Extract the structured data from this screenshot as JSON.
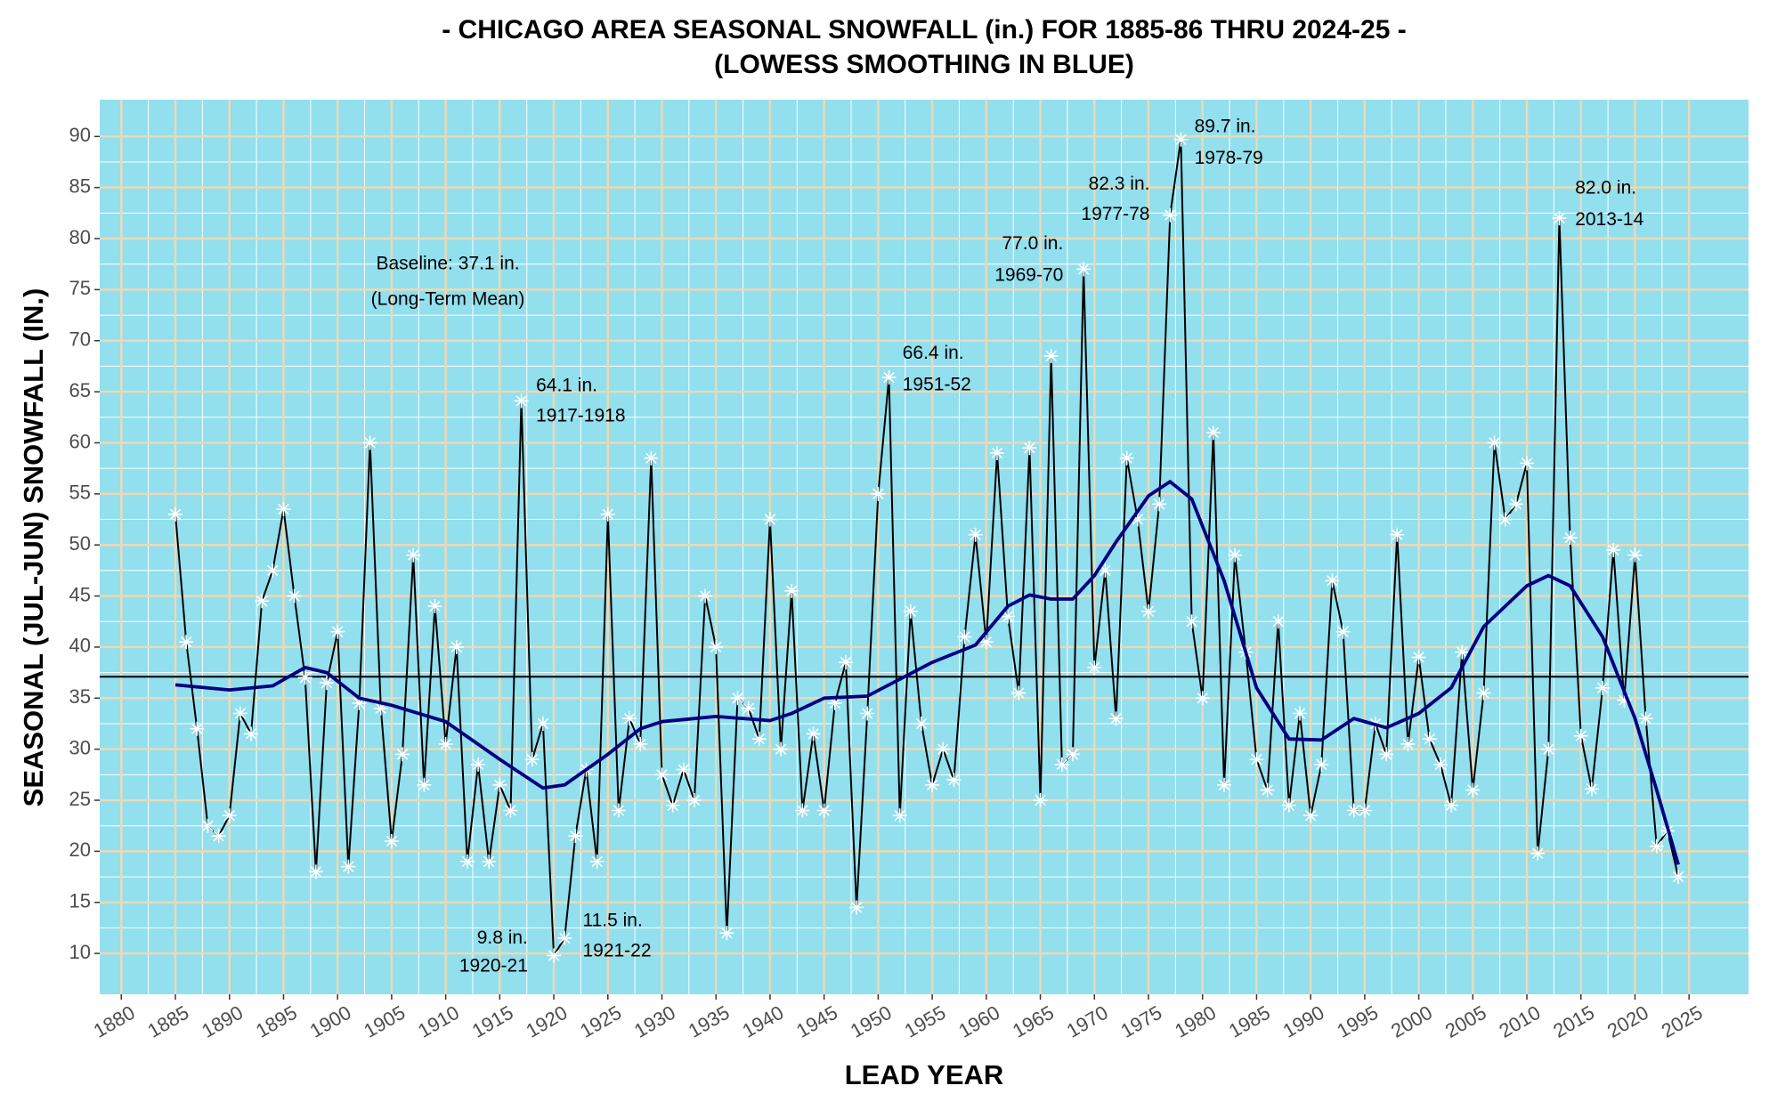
{
  "chart_data": {
    "type": "line",
    "title": "- CHICAGO AREA SEASONAL SNOWFALL (in.) FOR 1885-86 THRU 2024-25 -",
    "subtitle": "(LOWESS SMOOTHING IN BLUE)",
    "x_label": "LEAD YEAR",
    "y_label": "SEASONAL (JUL-JUN) SNOWFALL (IN.)",
    "x": [
      1885,
      1886,
      1887,
      1888,
      1889,
      1890,
      1891,
      1892,
      1893,
      1894,
      1895,
      1896,
      1897,
      1898,
      1899,
      1900,
      1901,
      1902,
      1903,
      1904,
      1905,
      1906,
      1907,
      1908,
      1909,
      1910,
      1911,
      1912,
      1913,
      1914,
      1915,
      1916,
      1917,
      1918,
      1919,
      1920,
      1921,
      1922,
      1923,
      1924,
      1925,
      1926,
      1927,
      1928,
      1929,
      1930,
      1931,
      1932,
      1933,
      1934,
      1935,
      1936,
      1937,
      1938,
      1939,
      1940,
      1941,
      1942,
      1943,
      1944,
      1945,
      1946,
      1947,
      1948,
      1949,
      1950,
      1951,
      1952,
      1953,
      1954,
      1955,
      1956,
      1957,
      1958,
      1959,
      1960,
      1961,
      1962,
      1963,
      1964,
      1965,
      1966,
      1967,
      1968,
      1969,
      1970,
      1971,
      1972,
      1973,
      1974,
      1975,
      1976,
      1977,
      1978,
      1979,
      1980,
      1981,
      1982,
      1983,
      1984,
      1985,
      1986,
      1987,
      1988,
      1989,
      1990,
      1991,
      1992,
      1993,
      1994,
      1995,
      1996,
      1997,
      1998,
      1999,
      2000,
      2001,
      2002,
      2003,
      2004,
      2005,
      2006,
      2007,
      2008,
      2009,
      2010,
      2011,
      2012,
      2013,
      2014,
      2015,
      2016,
      2017,
      2018,
      2019,
      2020,
      2021,
      2022,
      2023,
      2024
    ],
    "series": [
      {
        "color": "#000000",
        "marker_color": "#ffffff",
        "values": [
          53,
          40.5,
          32,
          22.5,
          21.5,
          23.5,
          33.5,
          31.5,
          44.5,
          47.5,
          53.5,
          45,
          37,
          18,
          36.5,
          41.5,
          18.5,
          34.5,
          60,
          34,
          21,
          29.5,
          49,
          26.5,
          44,
          30.5,
          40,
          19,
          28.5,
          19,
          26.5,
          24,
          64.1,
          29,
          32.5,
          9.8,
          11.5,
          21.5,
          28,
          19,
          53,
          24,
          33,
          30.5,
          58.5,
          27.5,
          24.5,
          28,
          25,
          45,
          40,
          12,
          35,
          34,
          31,
          52.5,
          30,
          45.5,
          24,
          31.5,
          24,
          34.5,
          38.5,
          14.5,
          33.5,
          55,
          66.4,
          23.5,
          43.5,
          32.5,
          26.5,
          30,
          27,
          41,
          51,
          40.5,
          59,
          43,
          35.5,
          59.5,
          25,
          68.5,
          28.5,
          29.5,
          77,
          38,
          47.5,
          33,
          58.5,
          52.5,
          43.5,
          54,
          82.3,
          89.7,
          42.5,
          35,
          61,
          26.5,
          49,
          39.5,
          29,
          26,
          42.5,
          24.5,
          33.5,
          23.5,
          28.5,
          46.5,
          41.5,
          24,
          24,
          32.5,
          29.5,
          51,
          30.5,
          39,
          31,
          28.5,
          24.5,
          39.5,
          26,
          35.5,
          60,
          52.5,
          54,
          58,
          19.8,
          30,
          82,
          50.7,
          31.3,
          26.1,
          36,
          49.5,
          34.8,
          49,
          33,
          20.5,
          22,
          17.5
        ]
      },
      {
        "color": "#000080",
        "smooth": true,
        "x": [
          1885,
          1890,
          1894,
          1897,
          1899,
          1902,
          1905,
          1910,
          1915,
          1919,
          1921,
          1925,
          1928,
          1930,
          1935,
          1940,
          1942,
          1945,
          1949,
          1955,
          1959,
          1962,
          1964,
          1966,
          1968,
          1970,
          1972,
          1975,
          1977,
          1979,
          1982,
          1985,
          1988,
          1991,
          1994,
          1997,
          2000,
          2003,
          2006,
          2010,
          2012,
          2014,
          2017,
          2020,
          2022,
          2024
        ],
        "values": [
          36.3,
          35.8,
          36.2,
          38,
          37.5,
          35,
          34.3,
          32.7,
          29,
          26.2,
          26.5,
          29.5,
          32,
          32.7,
          33.2,
          32.8,
          33.5,
          35,
          35.2,
          38.5,
          40.2,
          44,
          45.1,
          44.7,
          44.7,
          47,
          50.3,
          54.8,
          56.2,
          54.5,
          46.5,
          36,
          31,
          30.9,
          33,
          32.1,
          33.5,
          36,
          42,
          46,
          47,
          46,
          41,
          33,
          26,
          18.7
        ]
      }
    ],
    "hline": 37.1,
    "baseline_text": "Baseline: 37.1 in.",
    "baseline_subtext": "(Long-Term Mean)",
    "annotations": [
      {
        "x": 1917,
        "text": "64.1 in.",
        "subtext": "1917-1918"
      },
      {
        "x": 1920,
        "text": "9.8 in.",
        "subtext": "1920-21"
      },
      {
        "x": 1921,
        "text": "11.5 in.",
        "subtext": "1921-22"
      },
      {
        "x": 1951,
        "text": "66.4 in.",
        "subtext": "1951-52"
      },
      {
        "x": 1969,
        "text": "77.0 in.",
        "subtext": "1969-70"
      },
      {
        "x": 1977,
        "text": "82.3 in.",
        "subtext": "1977-78"
      },
      {
        "x": 1978,
        "text": "89.7 in.",
        "subtext": "1978-79"
      },
      {
        "x": 2013,
        "text": "82.0 in.",
        "subtext": "2013-14"
      }
    ],
    "xlim": [
      1878,
      2030.5
    ],
    "ylim": [
      6,
      93.6
    ],
    "xticks": [
      1880,
      1885,
      1890,
      1895,
      1900,
      1905,
      1910,
      1915,
      1920,
      1925,
      1930,
      1935,
      1940,
      1945,
      1950,
      1955,
      1960,
      1965,
      1970,
      1975,
      1980,
      1985,
      1990,
      1995,
      2000,
      2005,
      2010,
      2015,
      2020,
      2025
    ],
    "yticks": [
      10,
      15,
      20,
      25,
      30,
      35,
      40,
      45,
      50,
      55,
      60,
      65,
      70,
      75,
      80,
      85,
      90
    ],
    "grid": true,
    "background": "#92dfee",
    "grid_color": "#ecd9b5"
  }
}
